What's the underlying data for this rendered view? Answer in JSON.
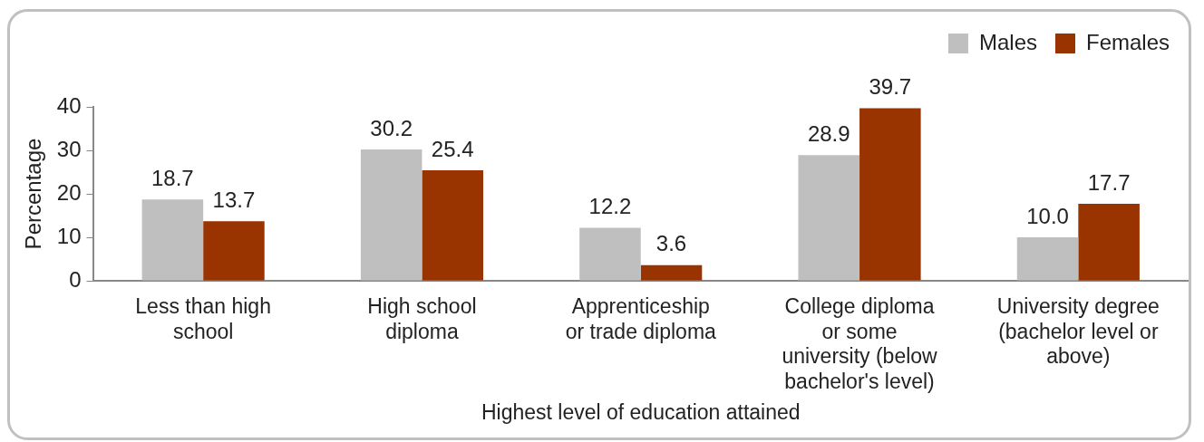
{
  "chart_data": {
    "type": "bar",
    "xlabel": "Highest level of education attained",
    "ylabel": "Percentage",
    "categories": [
      "Less than high\nschool",
      "High school\ndiploma",
      "Apprenticeship\nor trade diploma",
      "College diploma\nor some\nuniversity (below\nbachelor's level)",
      "University degree\n(bachelor level or\nabove)"
    ],
    "series": [
      {
        "name": "Males",
        "color": "#bfbfbf",
        "values": [
          18.7,
          30.2,
          12.2,
          28.9,
          10.0
        ],
        "value_labels": [
          "18.7",
          "30.2",
          "12.2",
          "28.9",
          "10.0"
        ]
      },
      {
        "name": "Females",
        "color": "#993300",
        "values": [
          13.7,
          25.4,
          3.6,
          39.7,
          17.7
        ],
        "value_labels": [
          "13.7",
          "25.4",
          "3.6",
          "39.7",
          "17.7"
        ]
      }
    ],
    "ylim": [
      0,
      40
    ],
    "yticks": [
      0,
      10,
      20,
      30,
      40
    ],
    "grid": false,
    "legend": "top right"
  }
}
